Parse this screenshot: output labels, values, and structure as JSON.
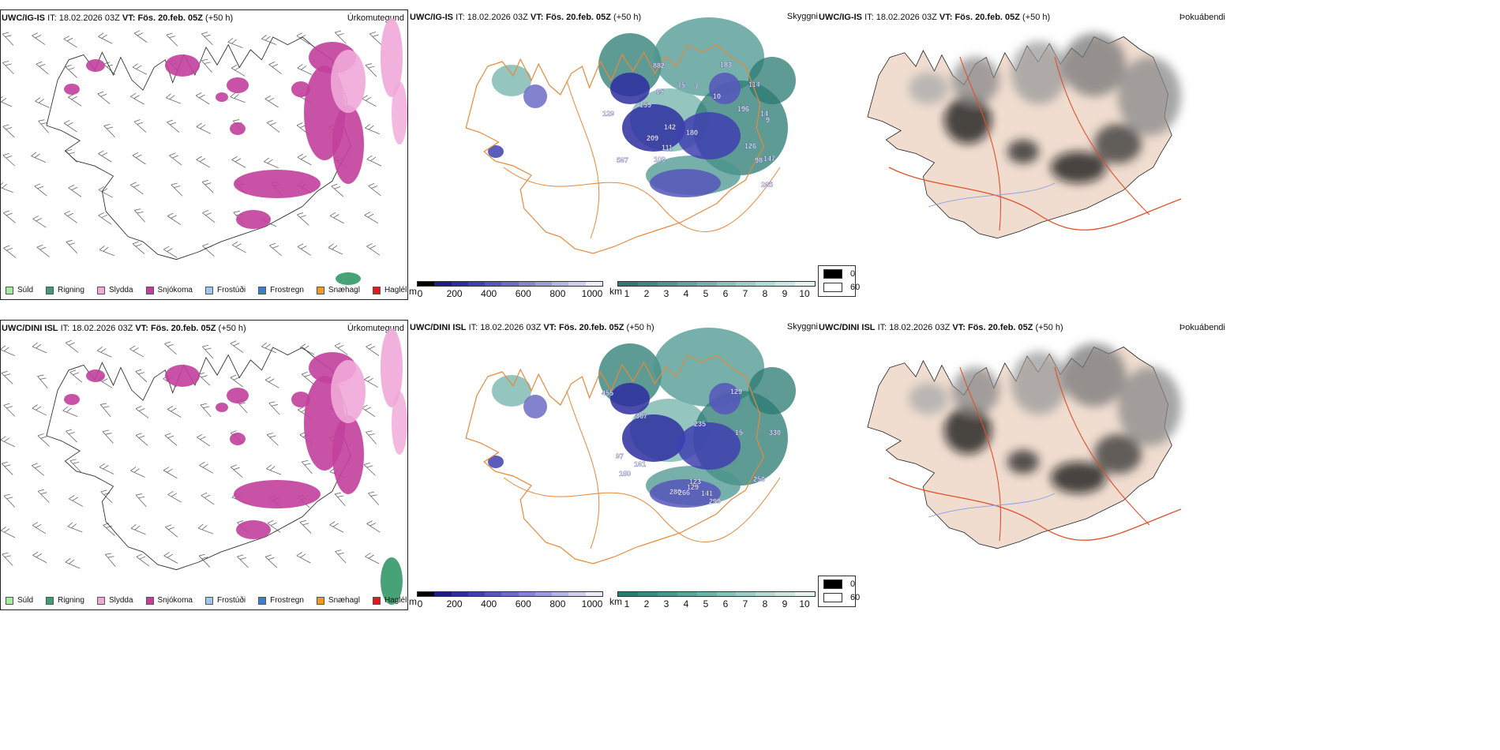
{
  "rows": [
    {
      "model": "UWC/IG-IS",
      "it_label": "IT:",
      "it": "18.02.2026 03Z",
      "vt_label": "VT:",
      "vt": "Fös. 20.feb. 05Z",
      "lead": "(+50 h)",
      "panel_titles": [
        "Úrkomutegund",
        "Skyggni",
        "Þokuábendi"
      ]
    },
    {
      "model": "UWC/DINI ISL",
      "it_label": "IT:",
      "it": "18.02.2026 03Z",
      "vt_label": "VT:",
      "vt": "Fös. 20.feb. 05Z",
      "lead": "(+50 h)",
      "panel_titles": [
        "Úrkomutegund",
        "Skyggni",
        "Þokuábendi"
      ]
    }
  ],
  "precip_legend": [
    {
      "label": "Súld",
      "color": "#a6ec9e"
    },
    {
      "label": "Rigning",
      "color": "#3d9e70"
    },
    {
      "label": "Slydda",
      "color": "#f0a8d8"
    },
    {
      "label": "Snjókoma",
      "color": "#c2409c"
    },
    {
      "label": "Frostúði",
      "color": "#9cc8f0"
    },
    {
      "label": "Frostregn",
      "color": "#3c7ec8"
    },
    {
      "label": "Snæhagl",
      "color": "#ee9a28"
    },
    {
      "label": "Haglél",
      "color": "#e41818"
    }
  ],
  "ceiling_colorbar": {
    "unit": "m",
    "ticks": [
      "0",
      "200",
      "400",
      "600",
      "800",
      "1000"
    ],
    "colors": [
      "#000000",
      "#1e1e82",
      "#2e2ea0",
      "#4040b0",
      "#5656bc",
      "#6c6cc6",
      "#8484d0",
      "#9c9cda",
      "#b6b6e4",
      "#d0d0ee",
      "#ececf8"
    ]
  },
  "visibility_colorbar": {
    "unit": "km",
    "ticks": [
      "1",
      "2",
      "3",
      "4",
      "5",
      "6",
      "7",
      "8",
      "9",
      "10"
    ],
    "colors": [
      "#2a7a72",
      "#3a8880",
      "#4a968e",
      "#5ca49c",
      "#70b2aa",
      "#86c0b8",
      "#9cccc6",
      "#b4dad4",
      "#cce6e2",
      "#e6f2f0"
    ]
  },
  "fog_legend": [
    {
      "label": "0",
      "color": "#000000"
    },
    {
      "label": "60",
      "color": "#ffffff"
    }
  ],
  "ceiling_labels_row1": [
    "15",
    "14",
    "10",
    "9",
    "142",
    "147",
    "111",
    "183",
    "98",
    "114",
    "159",
    "126",
    "196",
    "109",
    "567",
    "180",
    "209",
    "129",
    "882",
    "75",
    "265",
    "7"
  ],
  "ceiling_labels_row2": [
    "280",
    "123",
    "235",
    "455",
    "330",
    "180",
    "129",
    "97",
    "15",
    "367",
    "161",
    "250",
    "266",
    "299",
    "129",
    "141"
  ]
}
